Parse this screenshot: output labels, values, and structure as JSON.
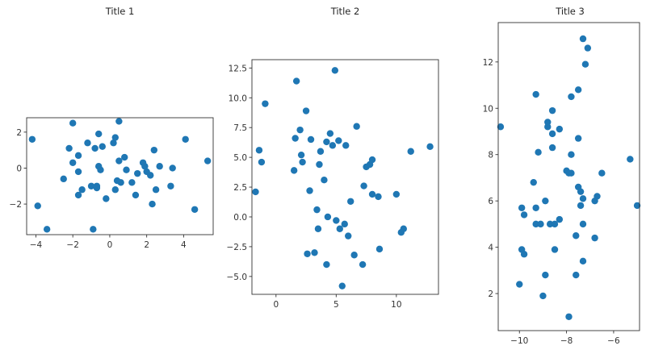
{
  "chart_data": [
    {
      "type": "scatter",
      "title": "Title 1",
      "xlabel": "",
      "ylabel": "",
      "xlim": [
        -4.5,
        5.6
      ],
      "ylim": [
        -3.7,
        2.8
      ],
      "xticks": [
        -4,
        -2,
        0,
        2,
        4
      ],
      "yticks": [
        -2,
        0,
        2
      ],
      "grid": false,
      "color": "#1f77b4",
      "points": [
        [
          -4.2,
          1.6
        ],
        [
          -3.9,
          -2.1
        ],
        [
          -3.4,
          -3.4
        ],
        [
          -2.5,
          -0.6
        ],
        [
          -2.2,
          1.1
        ],
        [
          -2.0,
          2.5
        ],
        [
          -2.0,
          0.3
        ],
        [
          -1.7,
          0.7
        ],
        [
          -1.7,
          -0.2
        ],
        [
          -1.7,
          -1.5
        ],
        [
          -1.5,
          -1.2
        ],
        [
          -1.2,
          1.4
        ],
        [
          -1.0,
          -1.0
        ],
        [
          -0.9,
          -3.4
        ],
        [
          -0.8,
          1.1
        ],
        [
          -0.7,
          -1.0
        ],
        [
          -0.7,
          -1.1
        ],
        [
          -0.6,
          1.9
        ],
        [
          -0.6,
          0.1
        ],
        [
          -0.5,
          -0.1
        ],
        [
          -0.4,
          1.2
        ],
        [
          -0.2,
          -1.7
        ],
        [
          0.2,
          1.4
        ],
        [
          0.3,
          1.7
        ],
        [
          0.3,
          -1.2
        ],
        [
          0.4,
          -0.7
        ],
        [
          0.5,
          2.6
        ],
        [
          0.5,
          0.4
        ],
        [
          0.6,
          -0.8
        ],
        [
          0.8,
          0.6
        ],
        [
          0.9,
          -0.1
        ],
        [
          1.2,
          -0.8
        ],
        [
          1.4,
          -1.5
        ],
        [
          1.5,
          -0.3
        ],
        [
          1.8,
          0.3
        ],
        [
          1.9,
          0.1
        ],
        [
          2.0,
          -0.2
        ],
        [
          2.2,
          -0.4
        ],
        [
          2.3,
          -2.0
        ],
        [
          2.4,
          1.0
        ],
        [
          2.5,
          -1.2
        ],
        [
          2.7,
          0.1
        ],
        [
          3.3,
          -1.0
        ],
        [
          3.4,
          0.0
        ],
        [
          4.1,
          1.6
        ],
        [
          4.6,
          -2.3
        ],
        [
          5.3,
          0.4
        ]
      ]
    },
    {
      "type": "scatter",
      "title": "Title 2",
      "xlabel": "",
      "ylabel": "",
      "xlim": [
        -2.0,
        13.5
      ],
      "ylim": [
        -6.5,
        13.2
      ],
      "xticks": [
        0,
        5,
        10
      ],
      "yticks": [
        -5.0,
        -2.5,
        0.0,
        2.5,
        5.0,
        7.5,
        10.0,
        12.5
      ],
      "grid": false,
      "color": "#1f77b4",
      "points": [
        [
          -1.7,
          2.1
        ],
        [
          -1.4,
          5.6
        ],
        [
          -1.2,
          4.6
        ],
        [
          -0.9,
          9.5
        ],
        [
          1.5,
          3.9
        ],
        [
          1.6,
          6.6
        ],
        [
          1.7,
          11.4
        ],
        [
          2.0,
          7.3
        ],
        [
          2.1,
          5.2
        ],
        [
          2.2,
          4.6
        ],
        [
          2.5,
          8.9
        ],
        [
          2.6,
          -3.1
        ],
        [
          2.8,
          2.2
        ],
        [
          2.9,
          6.5
        ],
        [
          3.2,
          -3.0
        ],
        [
          3.4,
          0.6
        ],
        [
          3.5,
          -1.0
        ],
        [
          3.6,
          4.4
        ],
        [
          3.7,
          5.5
        ],
        [
          4.0,
          3.1
        ],
        [
          4.2,
          6.3
        ],
        [
          4.2,
          -4.0
        ],
        [
          4.3,
          0.0
        ],
        [
          4.5,
          7.0
        ],
        [
          4.7,
          6.0
        ],
        [
          4.9,
          12.3
        ],
        [
          5.0,
          -0.3
        ],
        [
          5.2,
          6.4
        ],
        [
          5.3,
          -1.0
        ],
        [
          5.5,
          -5.8
        ],
        [
          5.7,
          -0.6
        ],
        [
          5.8,
          6.0
        ],
        [
          6.0,
          -1.6
        ],
        [
          6.2,
          1.3
        ],
        [
          6.5,
          -3.2
        ],
        [
          6.7,
          7.6
        ],
        [
          7.2,
          -4.0
        ],
        [
          7.3,
          2.6
        ],
        [
          7.5,
          4.2
        ],
        [
          7.8,
          4.4
        ],
        [
          8.0,
          4.8
        ],
        [
          8.0,
          1.9
        ],
        [
          8.5,
          1.7
        ],
        [
          8.6,
          -2.7
        ],
        [
          10.0,
          1.9
        ],
        [
          10.4,
          -1.3
        ],
        [
          10.6,
          -1.0
        ],
        [
          11.2,
          5.5
        ],
        [
          12.8,
          5.9
        ]
      ]
    },
    {
      "type": "scatter",
      "title": "Title 3",
      "xlabel": "",
      "ylabel": "",
      "xlim": [
        -10.9,
        -4.9
      ],
      "ylim": [
        0.4,
        13.7
      ],
      "xticks": [
        -10,
        -8,
        -6
      ],
      "yticks": [
        2,
        4,
        6,
        8,
        10,
        12
      ],
      "grid": false,
      "color": "#1f77b4",
      "points": [
        [
          -10.8,
          9.2
        ],
        [
          -10.0,
          2.4
        ],
        [
          -9.9,
          5.7
        ],
        [
          -9.9,
          3.9
        ],
        [
          -9.8,
          5.4
        ],
        [
          -9.8,
          3.7
        ],
        [
          -9.4,
          6.8
        ],
        [
          -9.3,
          10.6
        ],
        [
          -9.3,
          5.7
        ],
        [
          -9.3,
          5.0
        ],
        [
          -9.2,
          8.1
        ],
        [
          -9.1,
          5.0
        ],
        [
          -9.0,
          1.9
        ],
        [
          -8.9,
          6.0
        ],
        [
          -8.9,
          2.8
        ],
        [
          -8.8,
          9.4
        ],
        [
          -8.8,
          9.2
        ],
        [
          -8.7,
          5.0
        ],
        [
          -8.6,
          8.9
        ],
        [
          -8.6,
          9.9
        ],
        [
          -8.6,
          8.3
        ],
        [
          -8.5,
          5.0
        ],
        [
          -8.5,
          3.9
        ],
        [
          -8.3,
          5.2
        ],
        [
          -8.3,
          9.1
        ],
        [
          -8.0,
          7.3
        ],
        [
          -7.9,
          1.0
        ],
        [
          -7.9,
          7.2
        ],
        [
          -7.8,
          8.0
        ],
        [
          -7.8,
          10.5
        ],
        [
          -7.8,
          7.2
        ],
        [
          -7.6,
          4.5
        ],
        [
          -7.6,
          2.8
        ],
        [
          -7.5,
          10.8
        ],
        [
          -7.5,
          8.7
        ],
        [
          -7.5,
          6.6
        ],
        [
          -7.4,
          5.8
        ],
        [
          -7.4,
          6.4
        ],
        [
          -7.3,
          13.0
        ],
        [
          -7.3,
          6.1
        ],
        [
          -7.3,
          5.0
        ],
        [
          -7.3,
          3.4
        ],
        [
          -7.2,
          11.9
        ],
        [
          -7.1,
          12.6
        ],
        [
          -6.8,
          6.0
        ],
        [
          -6.8,
          4.4
        ],
        [
          -6.7,
          6.2
        ],
        [
          -6.5,
          7.2
        ],
        [
          -5.3,
          7.8
        ],
        [
          -5.0,
          5.8
        ]
      ]
    }
  ]
}
